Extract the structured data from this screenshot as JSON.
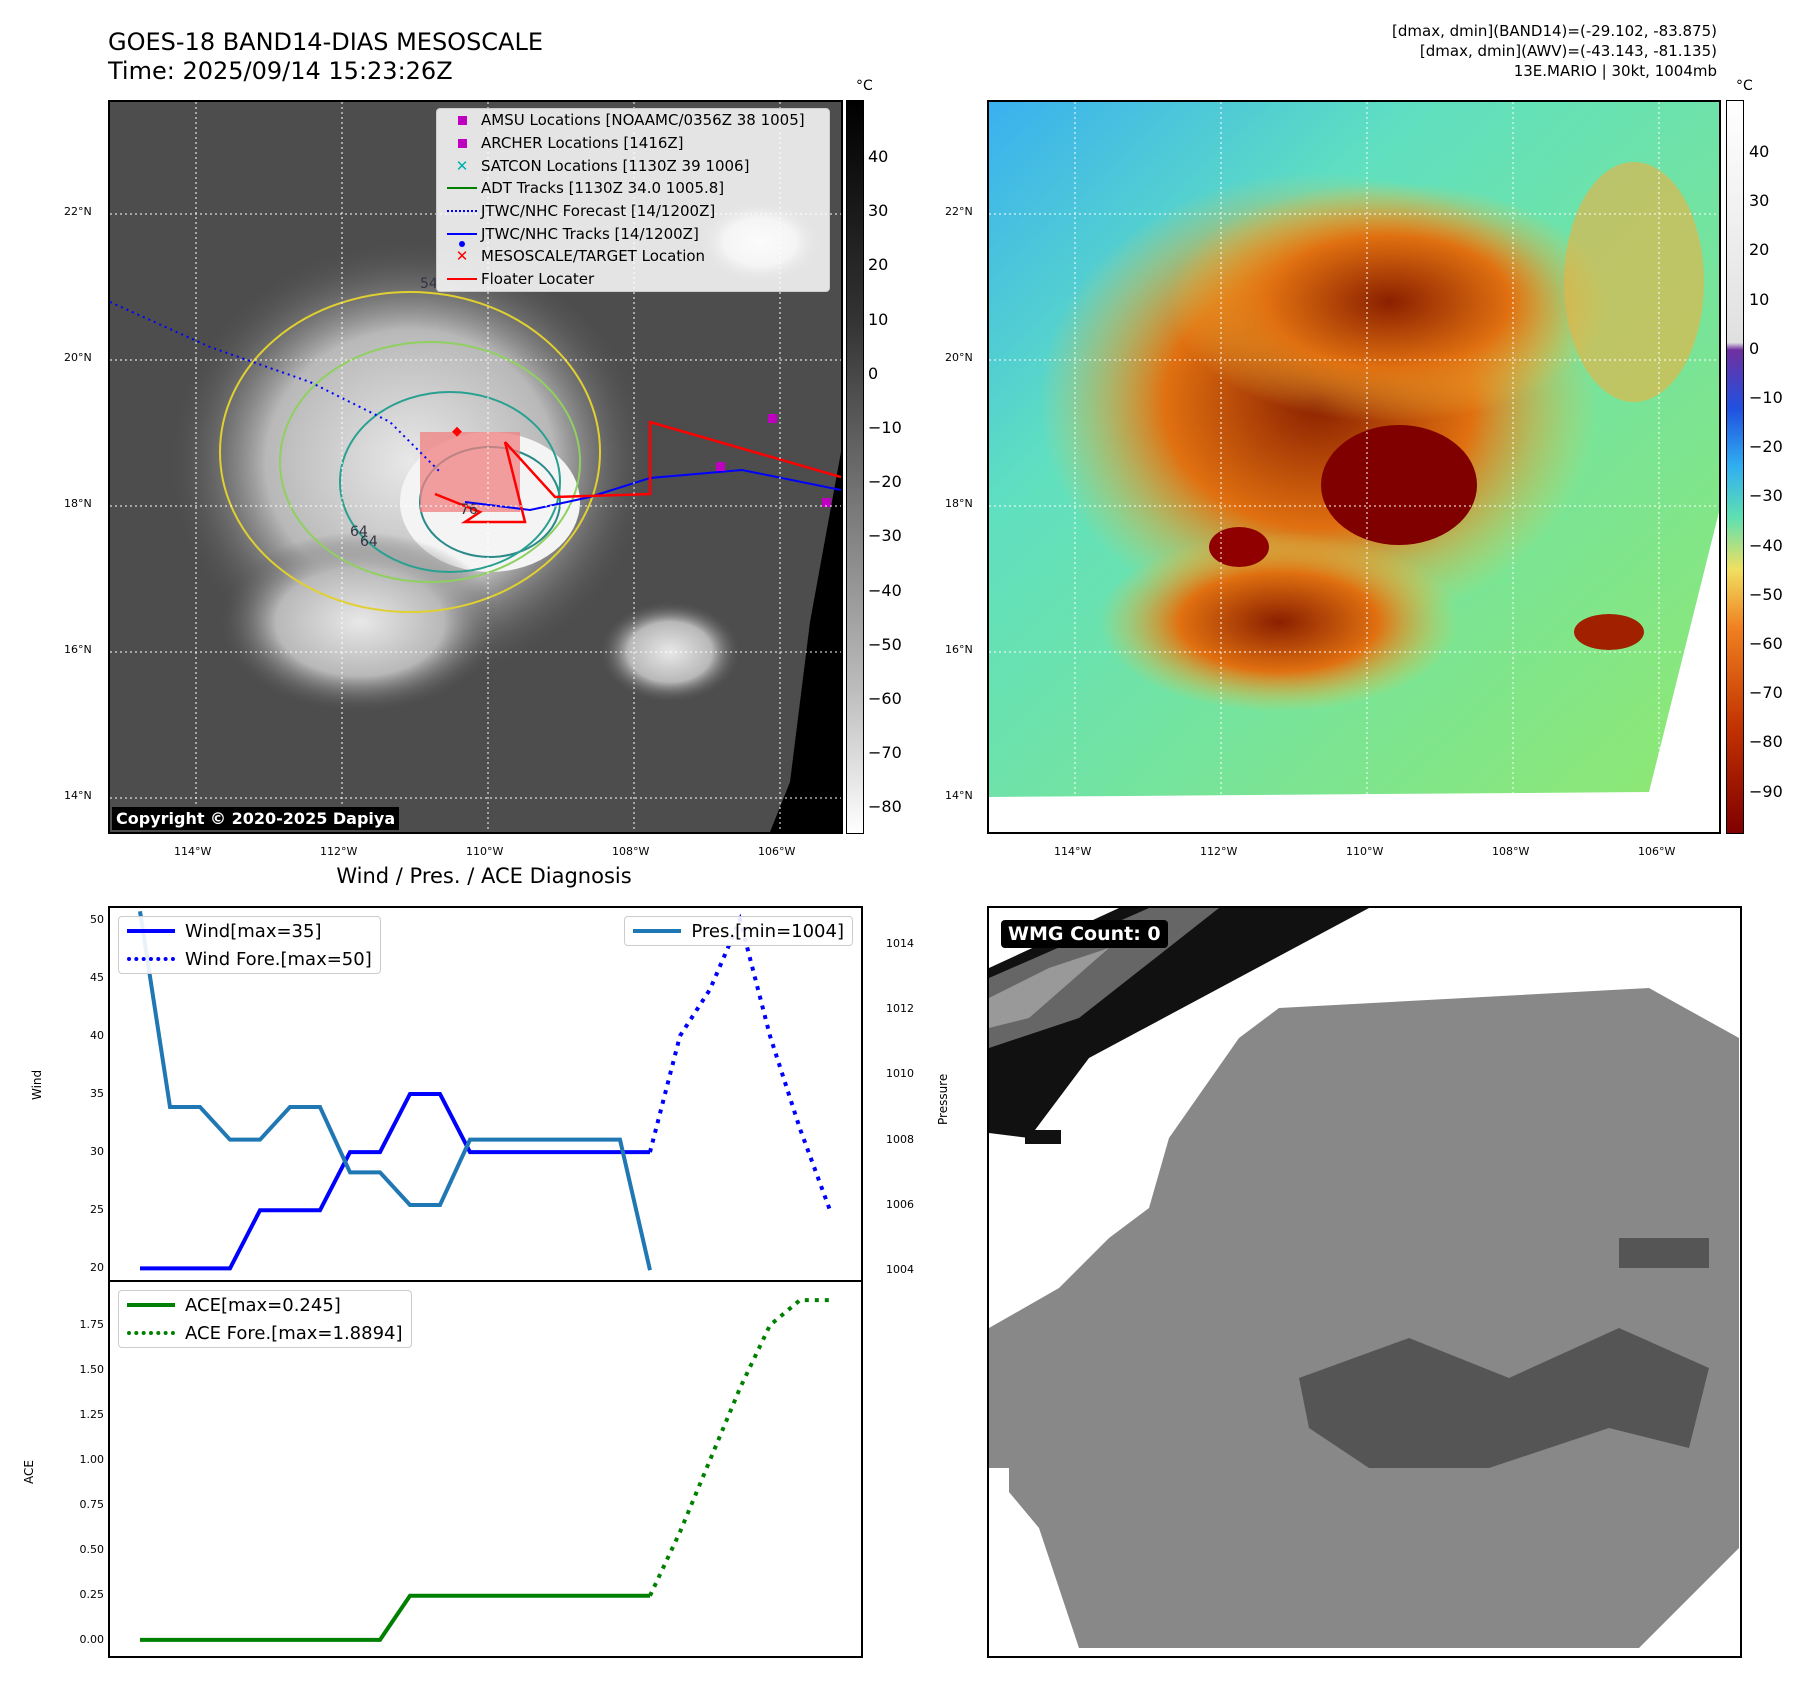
{
  "header": {
    "title_line1": "GOES-18 BAND14-DIAS MESOSCALE",
    "title_line2": "Time: 2025/09/14 15:23:26Z",
    "info_line1": "[dmax, dmin](BAND14)=(-29.102, -83.875)",
    "info_line2": "[dmax, dmin](AWV)=(-43.143, -81.135)",
    "info_line3": "13E.MARIO | 30kt, 1004mb"
  },
  "map_axes": {
    "lon_labels": [
      "114°W",
      "112°W",
      "110°W",
      "108°W",
      "106°W"
    ],
    "lat_labels": [
      "22°N",
      "20°N",
      "18°N",
      "16°N",
      "14°N"
    ]
  },
  "ir_map": {
    "unit": "°C",
    "colorbar_ticks": [
      "40",
      "30",
      "20",
      "10",
      "0",
      "−10",
      "−20",
      "−30",
      "−40",
      "−50",
      "−60",
      "−70",
      "−80"
    ],
    "legend": [
      {
        "label": "AMSU Locations [NOAAMC/0356Z 38 1005]",
        "symbol": "square",
        "color": "#c000c0"
      },
      {
        "label": "ARCHER Locations [1416Z]",
        "symbol": "square",
        "color": "#c000c0"
      },
      {
        "label": "SATCON Locations [1130Z 39 1006]",
        "symbol": "x",
        "color": "#00b0b0"
      },
      {
        "label": "ADT Tracks [1130Z 34.0 1005.8]",
        "symbol": "line",
        "color": "#008000"
      },
      {
        "label": "JTWC/NHC Forecast [14/1200Z]",
        "symbol": "dotted",
        "color": "#0000ff"
      },
      {
        "label": "JTWC/NHC Tracks [14/1200Z]",
        "symbol": "line-dot",
        "color": "#0000ff"
      },
      {
        "label": "MESOSCALE/TARGET Location",
        "symbol": "x",
        "color": "#ff0000"
      },
      {
        "label": "Floater Locater",
        "symbol": "line",
        "color": "#ff0000"
      }
    ],
    "contour_labels": [
      "54",
      "64",
      "76",
      "64"
    ],
    "copyright": "Copyright © 2020-2025 Dapiya"
  },
  "awv_map": {
    "unit": "°C",
    "colorbar_ticks": [
      "40",
      "30",
      "20",
      "10",
      "0",
      "−10",
      "−20",
      "−30",
      "−40",
      "−50",
      "−60",
      "−70",
      "−80",
      "−90"
    ]
  },
  "wind_panel": {
    "title": "Wind / Pres. / ACE Diagnosis",
    "ylabel_left": "Wind",
    "ylabel_right": "Pressure",
    "left_ticks": [
      "50",
      "45",
      "40",
      "35",
      "30",
      "25",
      "20"
    ],
    "right_ticks": [
      "1014",
      "1012",
      "1010",
      "1008",
      "1006",
      "1004"
    ]
  },
  "ace_panel": {
    "ylabel": "ACE",
    "ticks": [
      "1.75",
      "1.50",
      "1.25",
      "1.00",
      "0.75",
      "0.50",
      "0.25",
      "0.00"
    ]
  },
  "wmg_panel": {
    "label": "WMG Count: 0"
  },
  "chart_data": [
    {
      "type": "line",
      "ylabel": "Wind",
      "ylim": [
        19,
        51
      ],
      "x": [
        0,
        1,
        2,
        3,
        4,
        5,
        6,
        7,
        8,
        9,
        10,
        11,
        12,
        13,
        14,
        15,
        16,
        17,
        18,
        19,
        20,
        21,
        22,
        23
      ],
      "series": [
        {
          "name": "Wind[max=35]",
          "style": "solid",
          "color": "#0000ff",
          "x": [
            0,
            1,
            2,
            3,
            4,
            5,
            6,
            7,
            8,
            9,
            10,
            11,
            12,
            13,
            14,
            15,
            16,
            17
          ],
          "values": [
            20,
            20,
            20,
            20,
            25,
            25,
            25,
            30,
            30,
            35,
            35,
            30,
            30,
            30,
            30,
            30,
            30,
            30
          ]
        },
        {
          "name": "Wind Fore.[max=50]",
          "style": "dotted",
          "color": "#0000ff",
          "x": [
            17,
            18,
            19,
            20,
            21,
            22,
            23
          ],
          "values": [
            30,
            40,
            44,
            50,
            40,
            32,
            25
          ]
        }
      ]
    },
    {
      "type": "line",
      "ylabel": "Pressure",
      "ylim": [
        1003.7,
        1015.1
      ],
      "series": [
        {
          "name": "Pres.[min=1004]",
          "style": "solid",
          "color": "#1f77b4",
          "x": [
            0,
            1,
            2,
            3,
            4,
            5,
            6,
            7,
            8,
            9,
            10,
            11,
            12,
            13,
            14,
            15,
            16,
            17
          ],
          "values": [
            1015,
            1009,
            1009,
            1008,
            1008,
            1009,
            1009,
            1007,
            1007,
            1006,
            1006,
            1008,
            1008,
            1008,
            1008,
            1008,
            1008,
            1004
          ]
        }
      ]
    },
    {
      "type": "line",
      "ylabel": "ACE",
      "ylim": [
        -0.09,
        1.99
      ],
      "series": [
        {
          "name": "ACE[max=0.245]",
          "style": "solid",
          "color": "#008000",
          "x": [
            0,
            1,
            2,
            3,
            4,
            5,
            6,
            7,
            8,
            9,
            10,
            11,
            12,
            13,
            14,
            15,
            16,
            17
          ],
          "values": [
            0,
            0,
            0,
            0,
            0,
            0,
            0,
            0,
            0,
            0.245,
            0.245,
            0.245,
            0.245,
            0.245,
            0.245,
            0.245,
            0.245,
            0.245
          ]
        },
        {
          "name": "ACE Fore.[max=1.8894]",
          "style": "dotted",
          "color": "#008000",
          "x": [
            17,
            18,
            19,
            20,
            21,
            22,
            23
          ],
          "values": [
            0.245,
            0.6,
            1.0,
            1.4,
            1.75,
            1.8894,
            1.8894
          ]
        }
      ]
    }
  ]
}
